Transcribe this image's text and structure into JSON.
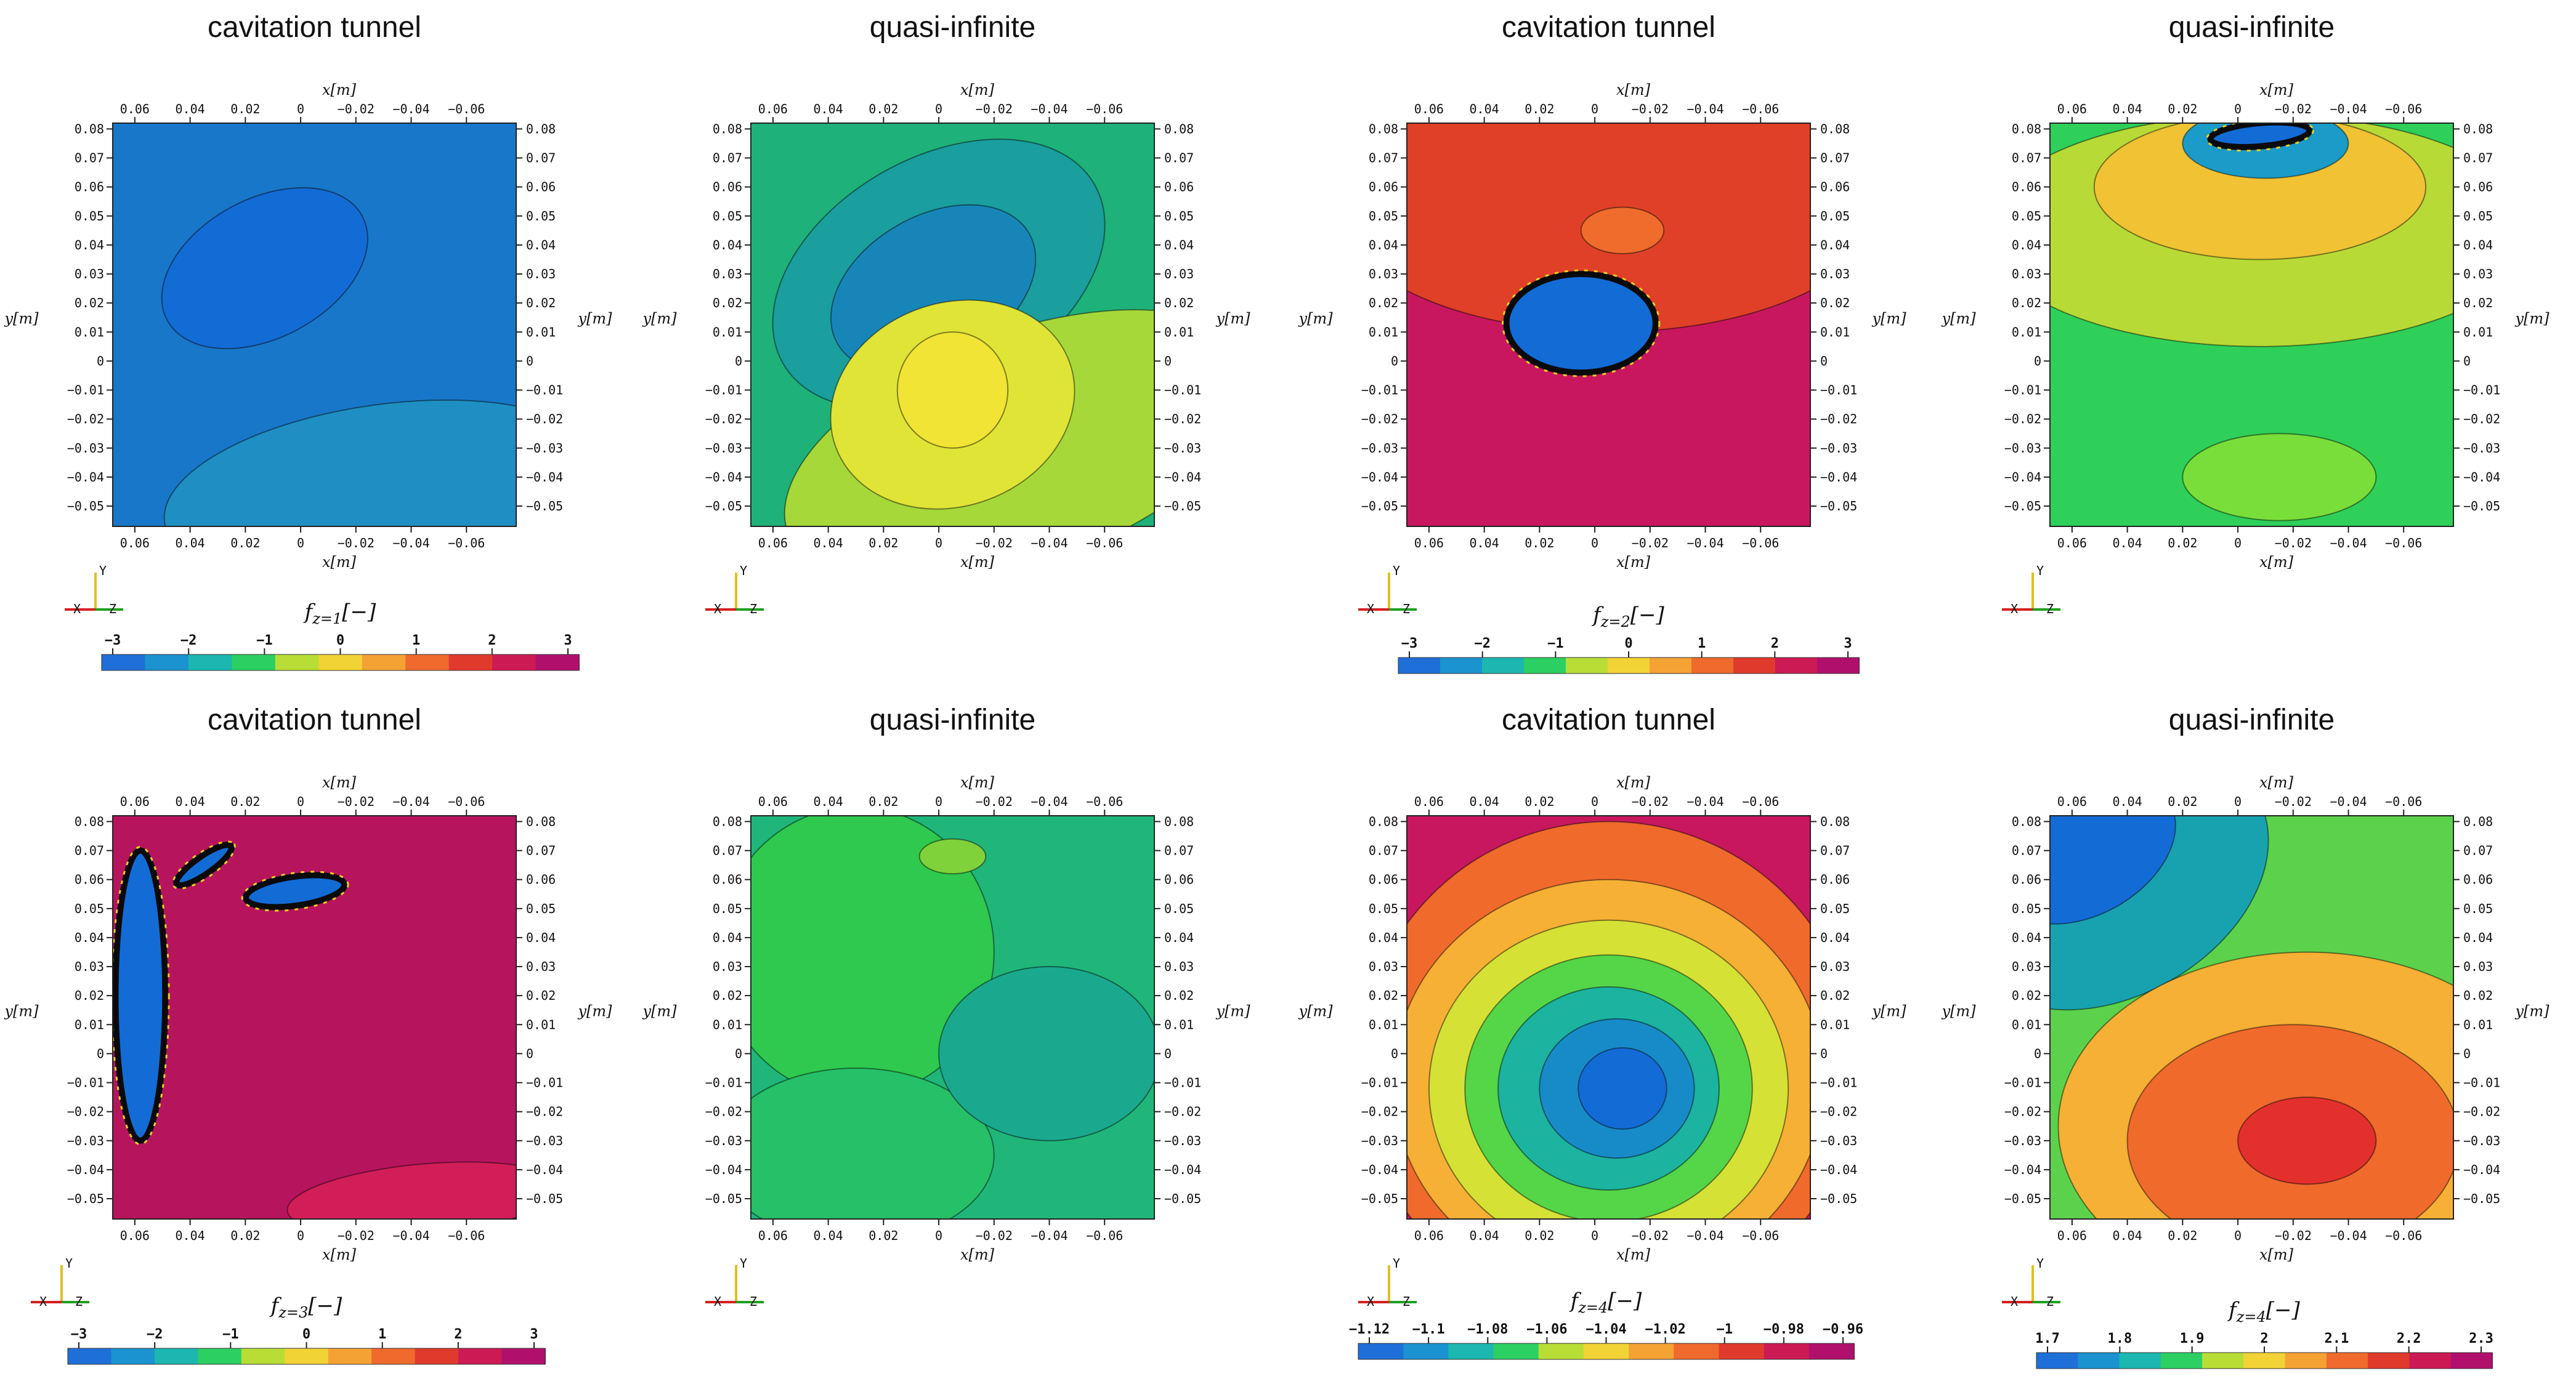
{
  "chart_data": [
    {
      "type": "heatmap",
      "title": "cavitation tunnel",
      "xlabel": "x[m]",
      "ylabel": "y[m]",
      "xlim": [
        0.068,
        -0.078
      ],
      "ylim": [
        -0.057,
        0.082
      ],
      "xticks": [
        "0.06",
        "0.04",
        "0.02",
        "0",
        "−0.02",
        "−0.04",
        "−0.06"
      ],
      "yticks": [
        "0.08",
        "0.07",
        "0.06",
        "0.05",
        "0.04",
        "0.03",
        "0.02",
        "0.01",
        "0",
        "−0.01",
        "−0.02",
        "−0.03",
        "−0.04",
        "−0.05"
      ],
      "colormap_range": [
        -3,
        3
      ],
      "field": "f_z=1 [−]",
      "background": "#1877c8",
      "regions": [
        {
          "kind": "blob",
          "x": 0.013,
          "y": 0.032,
          "rx": 0.04,
          "ry": 0.024,
          "angle": -28,
          "color": "#136bd6"
        },
        {
          "kind": "blob",
          "x": -0.03,
          "y": -0.045,
          "rx": 0.08,
          "ry": 0.03,
          "angle": -8,
          "color": "#1f8fc3"
        }
      ]
    },
    {
      "type": "heatmap",
      "title": "quasi-infinite",
      "xlabel": "x[m]",
      "ylabel": "y[m]",
      "xlim": [
        0.068,
        -0.078
      ],
      "ylim": [
        -0.057,
        0.082
      ],
      "xticks": [
        "0.06",
        "0.04",
        "0.02",
        "0",
        "−0.02",
        "−0.04",
        "−0.06"
      ],
      "yticks": [
        "0.08",
        "0.07",
        "0.06",
        "0.05",
        "0.04",
        "0.03",
        "0.02",
        "0.01",
        "0",
        "−0.01",
        "−0.02",
        "−0.03",
        "−0.04",
        "−0.05"
      ],
      "colormap_range": [
        -3,
        3
      ],
      "field": "f_z=1 [−]",
      "background": "#1fb17a",
      "regions": [
        {
          "kind": "blob",
          "x": 0.0,
          "y": 0.03,
          "rx": 0.065,
          "ry": 0.04,
          "angle": -30,
          "color": "#1a9e9e"
        },
        {
          "kind": "blob",
          "x": 0.002,
          "y": 0.025,
          "rx": 0.04,
          "ry": 0.025,
          "angle": -30,
          "color": "#1885b8"
        },
        {
          "kind": "blob",
          "x": -0.03,
          "y": -0.03,
          "rx": 0.09,
          "ry": 0.04,
          "angle": -20,
          "color": "#a6d83a"
        },
        {
          "kind": "blob",
          "x": -0.005,
          "y": -0.015,
          "rx": 0.045,
          "ry": 0.035,
          "angle": -20,
          "color": "#e0e436"
        },
        {
          "kind": "blob",
          "x": -0.005,
          "y": -0.01,
          "rx": 0.02,
          "ry": 0.02,
          "angle": 0,
          "color": "#f1e434"
        }
      ]
    },
    {
      "type": "heatmap",
      "title": "cavitation tunnel",
      "xlabel": "x[m]",
      "ylabel": "y[m]",
      "xlim": [
        0.068,
        -0.078
      ],
      "ylim": [
        -0.057,
        0.082
      ],
      "xticks": [
        "0.06",
        "0.04",
        "0.02",
        "0",
        "−0.02",
        "−0.04",
        "−0.06"
      ],
      "yticks": [
        "0.08",
        "0.07",
        "0.06",
        "0.05",
        "0.04",
        "0.03",
        "0.02",
        "0.01",
        "0",
        "−0.01",
        "−0.02",
        "−0.03",
        "−0.04",
        "−0.05"
      ],
      "colormap_range": [
        -3,
        3
      ],
      "field": "f_z=2 [−]",
      "background": "#c8175e",
      "regions": [
        {
          "kind": "blob",
          "x": -0.005,
          "y": 0.055,
          "rx": 0.1,
          "ry": 0.045,
          "angle": 0,
          "color": "#e04028"
        },
        {
          "kind": "blob",
          "x": -0.01,
          "y": 0.045,
          "rx": 0.015,
          "ry": 0.008,
          "angle": 0,
          "color": "#ef6c2c"
        },
        {
          "kind": "cavity",
          "x": 0.005,
          "y": 0.013,
          "rx": 0.027,
          "ry": 0.017,
          "angle": 0,
          "color": "#136bd6"
        }
      ]
    },
    {
      "type": "heatmap",
      "title": "quasi-infinite",
      "xlabel": "x[m]",
      "ylabel": "y[m]",
      "xlim": [
        0.068,
        -0.078
      ],
      "ylim": [
        -0.057,
        0.082
      ],
      "xticks": [
        "0.06",
        "0.04",
        "0.02",
        "0",
        "−0.02",
        "−0.04",
        "−0.06"
      ],
      "yticks": [
        "0.08",
        "0.07",
        "0.06",
        "0.05",
        "0.04",
        "0.03",
        "0.02",
        "0.01",
        "0",
        "−0.01",
        "−0.02",
        "−0.03",
        "−0.04",
        "−0.05"
      ],
      "colormap_range": [
        -3,
        3
      ],
      "field": "f_z=2 [−]",
      "background": "#2ed05a",
      "regions": [
        {
          "kind": "blob",
          "x": -0.008,
          "y": 0.045,
          "rx": 0.1,
          "ry": 0.04,
          "angle": 0,
          "color": "#b8da36"
        },
        {
          "kind": "blob",
          "x": -0.008,
          "y": 0.06,
          "rx": 0.06,
          "ry": 0.025,
          "angle": 0,
          "color": "#f0c234"
        },
        {
          "kind": "blob",
          "x": -0.01,
          "y": 0.075,
          "rx": 0.03,
          "ry": 0.012,
          "angle": 0,
          "color": "#1a9bc8"
        },
        {
          "kind": "cavity",
          "x": -0.008,
          "y": 0.078,
          "rx": 0.018,
          "ry": 0.004,
          "angle": -5,
          "color": "#136bd6"
        },
        {
          "kind": "blob",
          "x": -0.015,
          "y": -0.04,
          "rx": 0.035,
          "ry": 0.015,
          "angle": 0,
          "color": "#7ade3a"
        }
      ]
    },
    {
      "type": "heatmap",
      "title": "cavitation tunnel",
      "xlabel": "x[m]",
      "ylabel": "y[m]",
      "xlim": [
        0.068,
        -0.078
      ],
      "ylim": [
        -0.057,
        0.082
      ],
      "xticks": [
        "0.06",
        "0.04",
        "0.02",
        "0",
        "−0.02",
        "−0.04",
        "−0.06"
      ],
      "yticks": [
        "0.08",
        "0.07",
        "0.06",
        "0.05",
        "0.04",
        "0.03",
        "0.02",
        "0.01",
        "0",
        "−0.01",
        "−0.02",
        "−0.03",
        "−0.04",
        "−0.05"
      ],
      "colormap_range": [
        -3,
        3
      ],
      "field": "f_z=3 [−]",
      "background": "#b7145e",
      "regions": [
        {
          "kind": "cavity",
          "x": 0.058,
          "y": 0.02,
          "rx": 0.009,
          "ry": 0.05,
          "angle": 0,
          "color": "#136bd6"
        },
        {
          "kind": "cavity",
          "x": 0.002,
          "y": 0.056,
          "rx": 0.018,
          "ry": 0.005,
          "angle": -8,
          "color": "#136bd6"
        },
        {
          "kind": "cavity",
          "x": 0.035,
          "y": 0.065,
          "rx": 0.012,
          "ry": 0.003,
          "angle": -35,
          "color": "#136bd6"
        },
        {
          "kind": "blob",
          "x": -0.045,
          "y": -0.05,
          "rx": 0.05,
          "ry": 0.012,
          "angle": -5,
          "color": "#d11e58"
        }
      ]
    },
    {
      "type": "heatmap",
      "title": "quasi-infinite",
      "xlabel": "x[m]",
      "ylabel": "y[m]",
      "xlim": [
        0.068,
        -0.078
      ],
      "ylim": [
        -0.057,
        0.082
      ],
      "xticks": [
        "0.06",
        "0.04",
        "0.02",
        "0",
        "−0.02",
        "−0.04",
        "−0.06"
      ],
      "yticks": [
        "0.08",
        "0.07",
        "0.06",
        "0.05",
        "0.04",
        "0.03",
        "0.02",
        "0.01",
        "0",
        "−0.01",
        "−0.02",
        "−0.03",
        "−0.04",
        "−0.05"
      ],
      "colormap_range": [
        -3,
        3
      ],
      "field": "f_z=3 [−]",
      "background": "#20b67a",
      "regions": [
        {
          "kind": "blob",
          "x": 0.03,
          "y": 0.035,
          "rx": 0.05,
          "ry": 0.05,
          "angle": 0,
          "color": "#2ec94e"
        },
        {
          "kind": "blob",
          "x": -0.005,
          "y": 0.068,
          "rx": 0.012,
          "ry": 0.006,
          "angle": 0,
          "color": "#7fd23a"
        },
        {
          "kind": "blob",
          "x": 0.03,
          "y": -0.035,
          "rx": 0.05,
          "ry": 0.03,
          "angle": 0,
          "color": "#26c068"
        },
        {
          "kind": "blob",
          "x": -0.04,
          "y": 0.0,
          "rx": 0.04,
          "ry": 0.03,
          "angle": 0,
          "color": "#1aa98e"
        }
      ]
    },
    {
      "type": "heatmap",
      "title": "cavitation tunnel",
      "xlabel": "x[m]",
      "ylabel": "y[m]",
      "xlim": [
        0.068,
        -0.078
      ],
      "ylim": [
        -0.057,
        0.082
      ],
      "xticks": [
        "0.06",
        "0.04",
        "0.02",
        "0",
        "−0.02",
        "−0.04",
        "−0.06"
      ],
      "yticks": [
        "0.08",
        "0.07",
        "0.06",
        "0.05",
        "0.04",
        "0.03",
        "0.02",
        "0.01",
        "0",
        "−0.01",
        "−0.02",
        "−0.03",
        "−0.04",
        "−0.05"
      ],
      "colormap_range": [
        -1.12,
        -0.96
      ],
      "field": "f_z=4 [−]",
      "background": "#c8175e",
      "regions": [
        {
          "kind": "blob",
          "x": -0.005,
          "y": -0.005,
          "rx": 0.09,
          "ry": 0.085,
          "angle": 0,
          "color": "#f06a2c"
        },
        {
          "kind": "blob",
          "x": -0.005,
          "y": -0.01,
          "rx": 0.078,
          "ry": 0.07,
          "angle": 0,
          "color": "#f5b035"
        },
        {
          "kind": "blob",
          "x": -0.005,
          "y": -0.012,
          "rx": 0.065,
          "ry": 0.058,
          "angle": 0,
          "color": "#d6e136"
        },
        {
          "kind": "blob",
          "x": -0.005,
          "y": -0.012,
          "rx": 0.052,
          "ry": 0.046,
          "angle": 0,
          "color": "#55d548"
        },
        {
          "kind": "blob",
          "x": -0.005,
          "y": -0.012,
          "rx": 0.04,
          "ry": 0.035,
          "angle": 0,
          "color": "#1cb3a0"
        },
        {
          "kind": "blob",
          "x": -0.008,
          "y": -0.012,
          "rx": 0.028,
          "ry": 0.024,
          "angle": 0,
          "color": "#178bc8"
        },
        {
          "kind": "blob",
          "x": -0.01,
          "y": -0.012,
          "rx": 0.016,
          "ry": 0.014,
          "angle": 0,
          "color": "#136bd6"
        }
      ]
    },
    {
      "type": "heatmap",
      "title": "quasi-infinite",
      "xlabel": "x[m]",
      "ylabel": "y[m]",
      "xlim": [
        0.068,
        -0.078
      ],
      "ylim": [
        -0.057,
        0.082
      ],
      "xticks": [
        "0.06",
        "0.04",
        "0.02",
        "0",
        "−0.02",
        "−0.04",
        "−0.06"
      ],
      "yticks": [
        "0.08",
        "0.07",
        "0.06",
        "0.05",
        "0.04",
        "0.03",
        "0.02",
        "0.01",
        "0",
        "−0.01",
        "−0.02",
        "−0.03",
        "−0.04",
        "−0.05"
      ],
      "colormap_range": [
        1.7,
        2.3
      ],
      "field": "f_z=4 [−]",
      "background": "#5cd24c",
      "regions": [
        {
          "kind": "blob",
          "x": 0.045,
          "y": 0.06,
          "rx": 0.06,
          "ry": 0.04,
          "angle": -30,
          "color": "#18a2b0"
        },
        {
          "kind": "blob",
          "x": 0.055,
          "y": 0.07,
          "rx": 0.035,
          "ry": 0.022,
          "angle": -30,
          "color": "#136bd6"
        },
        {
          "kind": "blob",
          "x": -0.025,
          "y": -0.025,
          "rx": 0.09,
          "ry": 0.06,
          "angle": 0,
          "color": "#f5b035"
        },
        {
          "kind": "blob",
          "x": -0.02,
          "y": -0.03,
          "rx": 0.06,
          "ry": 0.04,
          "angle": 0,
          "color": "#f06a2c"
        },
        {
          "kind": "blob",
          "x": -0.025,
          "y": -0.03,
          "rx": 0.025,
          "ry": 0.015,
          "angle": 0,
          "color": "#e4302c"
        }
      ]
    }
  ],
  "colorbars": [
    {
      "field_prefix": "f",
      "subscript": "z=1",
      "unit": "[−]",
      "ticks": [
        "−3",
        "−2",
        "−1",
        "0",
        "1",
        "2",
        "3"
      ],
      "colors": [
        "#1f6fd9",
        "#1a93d0",
        "#1bb7b0",
        "#2ccf62",
        "#b8de36",
        "#f2d336",
        "#f5a235",
        "#ef6a2c",
        "#e03a2c",
        "#cc1a55",
        "#b0106b"
      ]
    },
    {
      "field_prefix": "f",
      "subscript": "z=2",
      "unit": "[−]",
      "ticks": [
        "−3",
        "−2",
        "−1",
        "0",
        "1",
        "2",
        "3"
      ],
      "colors": [
        "#1f6fd9",
        "#1a93d0",
        "#1bb7b0",
        "#2ccf62",
        "#b8de36",
        "#f2d336",
        "#f5a235",
        "#ef6a2c",
        "#e03a2c",
        "#cc1a55",
        "#b0106b"
      ]
    },
    {
      "field_prefix": "f",
      "subscript": "z=3",
      "unit": "[−]",
      "ticks": [
        "−3",
        "−2",
        "−1",
        "0",
        "1",
        "2",
        "3"
      ],
      "colors": [
        "#1f6fd9",
        "#1a93d0",
        "#1bb7b0",
        "#2ccf62",
        "#b8de36",
        "#f2d336",
        "#f5a235",
        "#ef6a2c",
        "#e03a2c",
        "#cc1a55",
        "#b0106b"
      ]
    },
    {
      "field_prefix": "f",
      "subscript": "z=4",
      "unit": "[−]",
      "ticks": [
        "−1.12",
        "−1.1",
        "−1.08",
        "−1.06",
        "−1.04",
        "−1.02",
        "−1",
        "−0.98",
        "−0.96"
      ],
      "colors": [
        "#1f6fd9",
        "#1a93d0",
        "#1bb7b0",
        "#2ccf62",
        "#b8de36",
        "#f2d336",
        "#f5a235",
        "#ef6a2c",
        "#e03a2c",
        "#cc1a55",
        "#b0106b"
      ]
    },
    {
      "field_prefix": "f",
      "subscript": "z=4",
      "unit": "[−]",
      "ticks": [
        "1.7",
        "1.8",
        "1.9",
        "2",
        "2.1",
        "2.2",
        "2.3"
      ],
      "colors": [
        "#1f6fd9",
        "#1a93d0",
        "#1bb7b0",
        "#2ccf62",
        "#b8de36",
        "#f2d336",
        "#f5a235",
        "#ef6a2c",
        "#e03a2c",
        "#cc1a55",
        "#b0106b"
      ]
    }
  ],
  "orientation_axes": {
    "labels": [
      "X",
      "Y",
      "Z"
    ],
    "colors": [
      "#d42020",
      "#e0c020",
      "#20a020"
    ]
  }
}
